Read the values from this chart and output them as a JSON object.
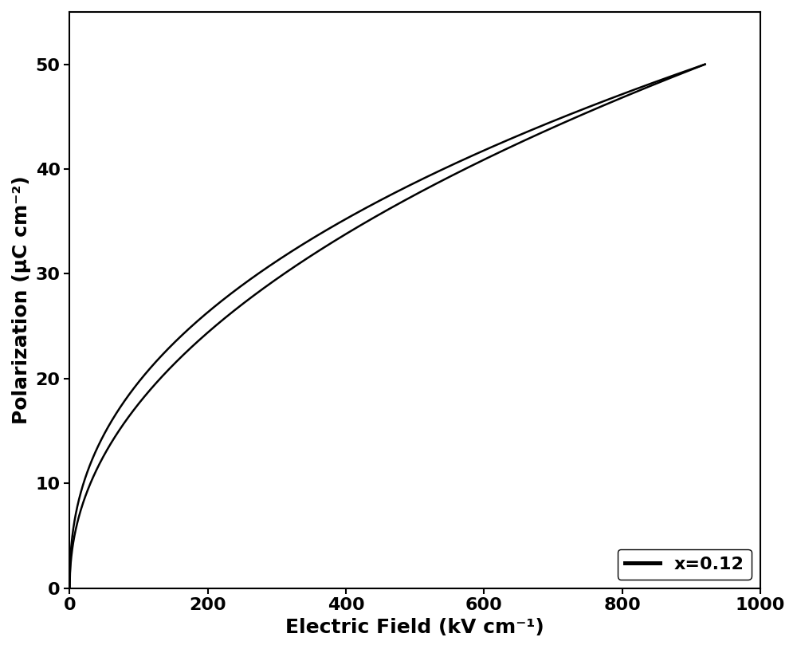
{
  "title": "",
  "xlabel": "Electric Field (kV cm⁻¹)",
  "ylabel": "Polarization (μC cm⁻²)",
  "xlim": [
    0,
    1000
  ],
  "ylim": [
    0,
    55
  ],
  "xticks": [
    0,
    200,
    400,
    600,
    800,
    1000
  ],
  "yticks": [
    0,
    10,
    20,
    30,
    40,
    50
  ],
  "legend_label": "x=0.12",
  "line_color": "#000000",
  "line_width": 1.8,
  "background_color": "#ffffff",
  "xlabel_fontsize": 18,
  "ylabel_fontsize": 18,
  "tick_fontsize": 16,
  "legend_fontsize": 16,
  "E_max": 920,
  "power_exponent_upper": 0.42,
  "power_exponent_lower": 0.47,
  "scale_upper": 1.855,
  "scale_lower": 1.62
}
